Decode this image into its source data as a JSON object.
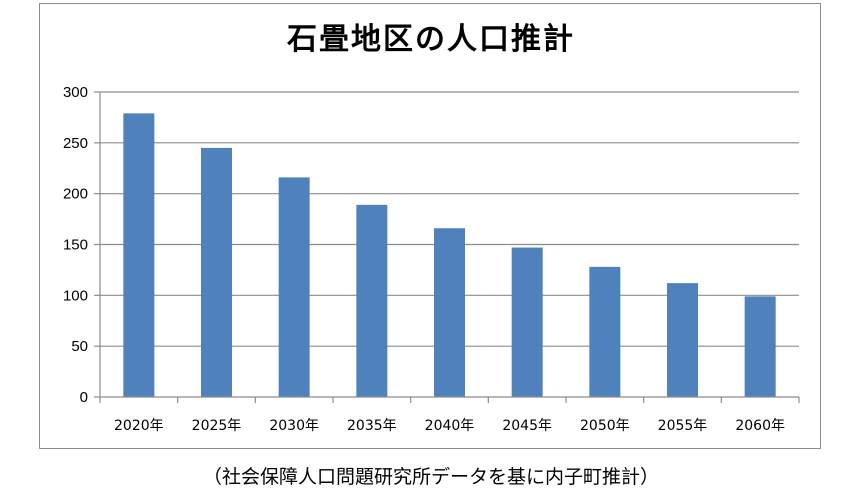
{
  "chart_data": {
    "type": "bar",
    "title": "石畳地区の人口推計",
    "xlabel": "",
    "ylabel": "",
    "categories": [
      "2020年",
      "2025年",
      "2030年",
      "2035年",
      "2040年",
      "2045年",
      "2050年",
      "2055年",
      "2060年"
    ],
    "values": [
      279,
      245,
      216,
      189,
      166,
      147,
      128,
      112,
      99
    ],
    "ylim": [
      0,
      300
    ],
    "yticks": [
      0,
      50,
      100,
      150,
      200,
      250,
      300
    ],
    "grid": true,
    "legend": "none",
    "bar_color": "#4f81bd"
  },
  "source_note": "（社会保障人口問題研究所データを基に内子町推計）"
}
